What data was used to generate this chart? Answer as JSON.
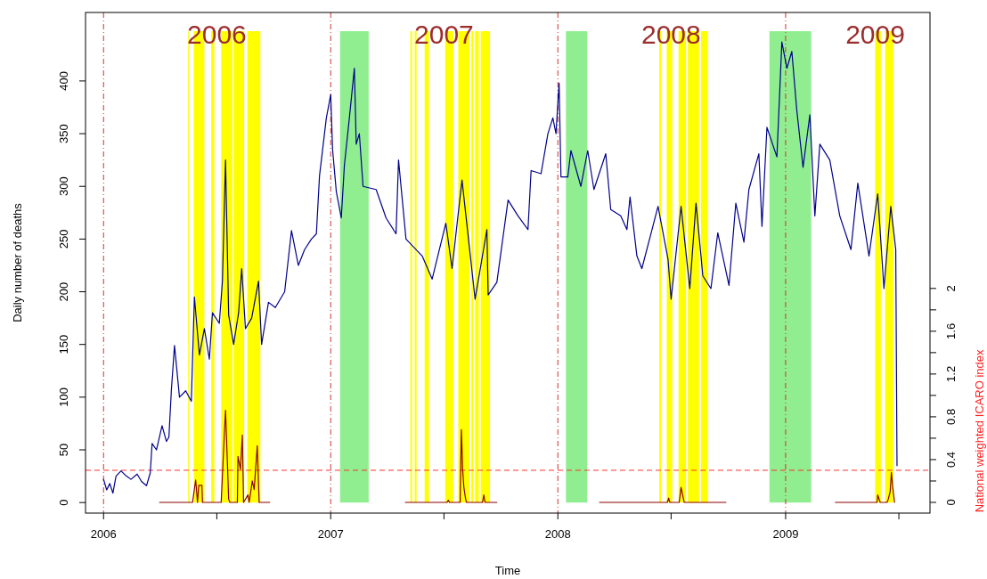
{
  "chart_data": {
    "type": "line",
    "xlabel": "Time",
    "ylabel": "Daily number of deaths",
    "y2label": "National weighted ICARO index",
    "xlim": [
      "2005-12-03",
      "2009-08-21"
    ],
    "ylim": [
      -10,
      465
    ],
    "y2lim": [
      -0.1,
      4.58
    ],
    "xticks": [
      "2006",
      {
        "value": "2006-07-02",
        "label": null
      },
      "2007",
      {
        "value": "2007-07-02",
        "label": null
      },
      "2008",
      {
        "value": "2008-07-01",
        "label": null
      },
      "2009",
      {
        "value": "2009-07-02",
        "label": null
      }
    ],
    "yticks": [
      0,
      50,
      100,
      150,
      200,
      250,
      300,
      350,
      400
    ],
    "y2ticks": [
      0,
      {
        "value": 0.2,
        "label": null
      },
      0.4,
      {
        "value": 0.6,
        "label": null
      },
      0.8,
      {
        "value": 1,
        "label": null
      },
      1.2,
      {
        "value": 1.4,
        "label": null
      },
      1.6,
      {
        "value": 1.8,
        "label": null
      },
      2
    ],
    "grid": false,
    "series": [
      {
        "color": "#00008b",
        "x": [
          "2006-01-01",
          "2006-01-06",
          "2006-01-11",
          "2006-01-16",
          "2006-01-21",
          "2006-01-29",
          "2006-02-05",
          "2006-02-14",
          "2006-02-24",
          "2006-03-03",
          "2006-03-11",
          "2006-03-17",
          "2006-03-20",
          "2006-03-27",
          "2006-04-05",
          "2006-04-12",
          "2006-04-16",
          "2006-04-20",
          "2006-04-25",
          "2006-05-03",
          "2006-05-13",
          "2006-05-22",
          "2006-05-27",
          "2006-06-04",
          "2006-06-12",
          "2006-06-20",
          "2006-06-25",
          "2006-07-06",
          "2006-07-11",
          "2006-07-16",
          "2006-07-21",
          "2006-07-29",
          "2006-08-06",
          "2006-08-11",
          "2006-08-17",
          "2006-08-27",
          "2006-09-07",
          "2006-09-12",
          "2006-09-23",
          "2006-10-04",
          "2006-10-19",
          "2006-10-30",
          "2006-11-10",
          "2006-11-20",
          "2006-12-01",
          "2006-12-09",
          "2006-12-14",
          "2006-12-25",
          "2007-01-01",
          "2007-01-04",
          "2007-01-10",
          "2007-01-18",
          "2007-01-23",
          "2007-01-31",
          "2007-02-08",
          "2007-02-11",
          "2007-02-16",
          "2007-02-22",
          "2007-03-15",
          "2007-03-31",
          "2007-04-16",
          "2007-04-20",
          "2007-05-02",
          "2007-05-28",
          "2007-06-13",
          "2007-07-05",
          "2007-07-15",
          "2007-07-31",
          "2007-08-21",
          "2007-09-09",
          "2007-09-11",
          "2007-09-25",
          "2007-10-13",
          "2007-10-29",
          "2007-11-14",
          "2007-11-19",
          "2007-12-05",
          "2007-12-16",
          "2007-12-24",
          "2007-12-29",
          "2008-01-03",
          "2008-01-06",
          "2008-01-17",
          "2008-01-22",
          "2008-02-07",
          "2008-02-18",
          "2008-02-28",
          "2008-03-18",
          "2008-03-26",
          "2008-04-11",
          "2008-04-21",
          "2008-04-26",
          "2008-05-07",
          "2008-05-15",
          "2008-05-30",
          "2008-06-10",
          "2008-06-26",
          "2008-07-01",
          "2008-07-17",
          "2008-07-31",
          "2008-08-10",
          "2008-08-21",
          "2008-09-03",
          "2008-09-14",
          "2008-10-02",
          "2008-10-13",
          "2008-10-26",
          "2008-11-03",
          "2008-11-19",
          "2008-11-24",
          "2008-12-02",
          "2008-12-18",
          "2008-12-26",
          "2009-01-03",
          "2009-01-11",
          "2009-01-19",
          "2009-01-29",
          "2009-02-09",
          "2009-02-17",
          "2009-02-25",
          "2009-03-13",
          "2009-03-29",
          "2009-04-16",
          "2009-04-27",
          "2009-05-15",
          "2009-05-29",
          "2009-06-08",
          "2009-06-19",
          "2009-06-27",
          "2009-06-29"
        ],
        "values": [
          22,
          12,
          18,
          9,
          25,
          30,
          26,
          22,
          27,
          20,
          16,
          28,
          56,
          50,
          73,
          58,
          62,
          107,
          149,
          100,
          106,
          96,
          195,
          140,
          165,
          136,
          180,
          170,
          210,
          325,
          178,
          150,
          180,
          222,
          165,
          175,
          210,
          150,
          190,
          185,
          200,
          258,
          225,
          240,
          250,
          255,
          310,
          365,
          387,
          335,
          295,
          270,
          320,
          365,
          412,
          340,
          350,
          300,
          297,
          270,
          255,
          325,
          250,
          234,
          212,
          265,
          222,
          306,
          193,
          259,
          197,
          209,
          287,
          272,
          259,
          315,
          312,
          350,
          365,
          350,
          398,
          309,
          309,
          334,
          300,
          334,
          297,
          331,
          278,
          272,
          259,
          290,
          234,
          222,
          256,
          281,
          231,
          193,
          281,
          203,
          284,
          215,
          203,
          256,
          206,
          284,
          247,
          297,
          331,
          262,
          356,
          328,
          437,
          412,
          428,
          372,
          318,
          368,
          272,
          340,
          325,
          272,
          240,
          303,
          234,
          293,
          203,
          281,
          240,
          35
        ]
      },
      {
        "color": "#8b0000",
        "axis": "y2",
        "x": [
          "2006-04-01",
          "2006-05-24",
          "2006-05-29",
          "2006-06-01",
          "2006-06-03",
          "2006-06-08",
          "2006-06-09",
          "2006-07-09",
          "2006-07-14",
          "2006-07-16",
          "2006-07-19",
          "2006-07-21",
          "2006-07-23",
          "2006-08-04",
          "2006-08-05",
          "2006-08-09",
          "2006-08-12",
          "2006-08-14",
          "2006-08-21",
          "2006-08-23",
          "2006-08-28",
          "2006-08-31",
          "2006-09-05",
          "2006-09-08",
          "2006-09-25",
          "2006-12-01",
          "2007-05-01",
          "2007-07-07",
          "2007-07-09",
          "2007-07-11",
          "2007-07-28",
          "2007-07-30",
          "2007-08-01",
          "2007-08-03",
          "2007-08-05",
          "2007-08-07",
          "2007-09-02",
          "2007-09-04",
          "2007-09-06",
          "2007-09-25",
          "2008-01-01",
          "2008-03-08",
          "2008-06-25",
          "2008-06-27",
          "2008-06-29",
          "2008-07-14",
          "2008-07-17",
          "2008-07-22",
          "2008-09-27",
          "2009-01-01",
          "2009-03-22",
          "2009-05-28",
          "2009-05-29",
          "2009-06-02",
          "2009-06-13",
          "2009-06-15",
          "2009-06-18",
          "2009-06-20",
          "2009-06-22",
          "2009-06-25"
        ],
        "values": [
          0,
          0,
          0.21,
          0,
          0.16,
          0.16,
          0,
          0,
          0.63,
          0.86,
          0.37,
          0.03,
          0,
          0,
          0.43,
          0.31,
          0.63,
          0,
          0.07,
          0,
          0.2,
          0.12,
          0.53,
          0,
          0,
          null,
          0,
          0,
          0.02,
          0,
          0,
          0.68,
          0.31,
          0.14,
          0.06,
          0,
          0,
          0.07,
          0,
          0,
          null,
          0,
          0,
          0.04,
          0,
          0,
          0.14,
          0,
          0,
          null,
          0,
          0,
          0.07,
          0,
          0,
          0.03,
          0.1,
          0.28,
          0.15,
          0
        ]
      }
    ],
    "bands": [
      {
        "axis": "x",
        "from": "2006-05-17",
        "to": "2006-05-19",
        "color": "#ffff00"
      },
      {
        "axis": "x",
        "from": "2006-05-26",
        "to": "2006-06-12",
        "color": "#ffff00"
      },
      {
        "axis": "x",
        "from": "2006-06-23",
        "to": "2006-06-28",
        "color": "#ffff00"
      },
      {
        "axis": "x",
        "from": "2006-07-09",
        "to": "2006-07-27",
        "color": "#ffff00"
      },
      {
        "axis": "x",
        "from": "2006-07-29",
        "to": "2006-08-15",
        "color": "#ffff00"
      },
      {
        "axis": "x",
        "from": "2006-08-20",
        "to": "2006-09-10",
        "color": "#ffff00"
      },
      {
        "axis": "x",
        "from": "2007-01-16",
        "to": "2007-03-03",
        "color": "#90ee90"
      },
      {
        "axis": "x",
        "from": "2007-05-09",
        "to": "2007-05-12",
        "color": "#ffff00"
      },
      {
        "axis": "x",
        "from": "2007-05-16",
        "to": "2007-05-19",
        "color": "#ffff00"
      },
      {
        "axis": "x",
        "from": "2007-06-01",
        "to": "2007-06-08",
        "color": "#ffff00"
      },
      {
        "axis": "x",
        "from": "2007-07-04",
        "to": "2007-07-17",
        "color": "#ffff00"
      },
      {
        "axis": "x",
        "from": "2007-07-25",
        "to": "2007-08-12",
        "color": "#ffff00"
      },
      {
        "axis": "x",
        "from": "2007-08-15",
        "to": "2007-08-18",
        "color": "#ffff00"
      },
      {
        "axis": "x",
        "from": "2007-08-21",
        "to": "2007-08-27",
        "color": "#ffff00"
      },
      {
        "axis": "x",
        "from": "2007-08-30",
        "to": "2007-09-14",
        "color": "#ffff00"
      },
      {
        "axis": "x",
        "from": "2008-01-14",
        "to": "2008-02-17",
        "color": "#90ee90"
      },
      {
        "axis": "x",
        "from": "2008-06-12",
        "to": "2008-06-15",
        "color": "#ffff00"
      },
      {
        "axis": "x",
        "from": "2008-06-24",
        "to": "2008-07-03",
        "color": "#ffff00"
      },
      {
        "axis": "x",
        "from": "2008-07-13",
        "to": "2008-07-25",
        "color": "#ffff00"
      },
      {
        "axis": "x",
        "from": "2008-07-28",
        "to": "2008-08-15",
        "color": "#ffff00"
      },
      {
        "axis": "x",
        "from": "2008-08-18",
        "to": "2008-08-29",
        "color": "#ffff00"
      },
      {
        "axis": "x",
        "from": "2008-12-06",
        "to": "2009-02-11",
        "color": "#90ee90"
      },
      {
        "axis": "x",
        "from": "2009-05-25",
        "to": "2009-06-03",
        "color": "#ffff00"
      },
      {
        "axis": "x",
        "from": "2009-06-10",
        "to": "2009-06-23",
        "color": "#ffff00"
      }
    ],
    "ref_lines": [
      {
        "axis": "x",
        "value": "2006-01-01",
        "color": "#cd3333",
        "line_style": "dotted"
      },
      {
        "axis": "x",
        "value": "2007-01-01",
        "color": "#cd3333",
        "line_style": "dotted"
      },
      {
        "axis": "x",
        "value": "2008-01-01",
        "color": "#cd3333",
        "line_style": "dotted"
      },
      {
        "axis": "x",
        "value": "2009-01-01",
        "color": "#cd3333",
        "line_style": "dotted"
      },
      {
        "axis": "y2",
        "value": 0.3,
        "color": "#ff3030",
        "line_style": "dashed"
      }
    ],
    "annotations": [
      {
        "text": "2006",
        "x": "2006-07-02",
        "y": 442
      },
      {
        "text": "2007",
        "x": "2007-07-02",
        "y": 442
      },
      {
        "text": "2008",
        "x": "2008-07-01",
        "y": 442
      },
      {
        "text": "2009",
        "x": "2009-05-25",
        "y": 442
      }
    ]
  }
}
